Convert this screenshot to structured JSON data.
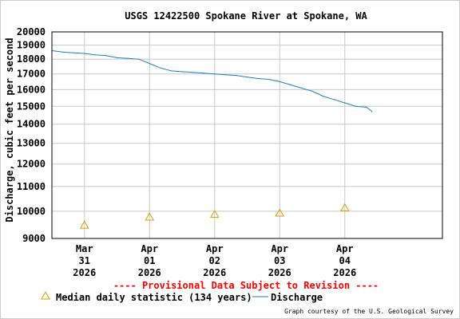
{
  "chart_data": {
    "type": "line",
    "title": "USGS 12422500 Spokane River at Spokane, WA",
    "ylabel": "Discharge, cubic feet per second",
    "xlabel": "",
    "y_scale": "log",
    "ylim": [
      9000,
      20000
    ],
    "y_ticks": [
      9000,
      10000,
      11000,
      12000,
      13000,
      14000,
      15000,
      16000,
      17000,
      18000,
      19000,
      20000
    ],
    "xlim": [
      "2026-03-30T12:00",
      "2026-04-05T12:00"
    ],
    "x_ticks": [
      {
        "at": "2026-03-31T00:00",
        "lines": [
          "Mar",
          "31",
          "2026"
        ]
      },
      {
        "at": "2026-04-01T00:00",
        "lines": [
          "Apr",
          "01",
          "2026"
        ]
      },
      {
        "at": "2026-04-02T00:00",
        "lines": [
          "Apr",
          "02",
          "2026"
        ]
      },
      {
        "at": "2026-04-03T00:00",
        "lines": [
          "Apr",
          "03",
          "2026"
        ]
      },
      {
        "at": "2026-04-04T00:00",
        "lines": [
          "Apr",
          "04",
          "2026"
        ]
      }
    ],
    "grid": true,
    "discharge_color": "#1f7fbf",
    "median_color": "#d9a000",
    "series": [
      {
        "name": "Discharge",
        "style": "line",
        "points": [
          [
            "2026-03-30T12:00",
            18600
          ],
          [
            "2026-03-30T16:00",
            18500
          ],
          [
            "2026-03-30T20:00",
            18450
          ],
          [
            "2026-03-31T00:00",
            18400
          ],
          [
            "2026-03-31T04:00",
            18300
          ],
          [
            "2026-03-31T08:00",
            18250
          ],
          [
            "2026-03-31T12:00",
            18100
          ],
          [
            "2026-03-31T16:00",
            18050
          ],
          [
            "2026-03-31T20:00",
            18000
          ],
          [
            "2026-04-01T00:00",
            17700
          ],
          [
            "2026-04-01T04:00",
            17400
          ],
          [
            "2026-04-01T08:00",
            17200
          ],
          [
            "2026-04-01T12:00",
            17150
          ],
          [
            "2026-04-01T16:00",
            17100
          ],
          [
            "2026-04-01T20:00",
            17050
          ],
          [
            "2026-04-02T00:00",
            17000
          ],
          [
            "2026-04-02T04:00",
            16950
          ],
          [
            "2026-04-02T08:00",
            16900
          ],
          [
            "2026-04-02T12:00",
            16800
          ],
          [
            "2026-04-02T16:00",
            16700
          ],
          [
            "2026-04-02T20:00",
            16650
          ],
          [
            "2026-04-03T00:00",
            16500
          ],
          [
            "2026-04-03T04:00",
            16300
          ],
          [
            "2026-04-03T08:00",
            16100
          ],
          [
            "2026-04-03T12:00",
            15900
          ],
          [
            "2026-04-03T16:00",
            15600
          ],
          [
            "2026-04-03T20:00",
            15400
          ],
          [
            "2026-04-04T00:00",
            15200
          ],
          [
            "2026-04-04T04:00",
            15000
          ],
          [
            "2026-04-04T08:00",
            14950
          ],
          [
            "2026-04-04T10:00",
            14700
          ]
        ]
      },
      {
        "name": "Median daily statistic (134 years)",
        "style": "marker",
        "points": [
          [
            "2026-03-31T00:00",
            9450
          ],
          [
            "2026-04-01T00:00",
            9750
          ],
          [
            "2026-04-02T00:00",
            9850
          ],
          [
            "2026-04-03T00:00",
            9900
          ],
          [
            "2026-04-04T00:00",
            10100
          ]
        ]
      }
    ]
  },
  "provisional_notice": "---- Provisional Data Subject to Revision ----",
  "notice_color": "#ff0000",
  "credit": "Graph courtesy of the U.S. Geological Survey"
}
